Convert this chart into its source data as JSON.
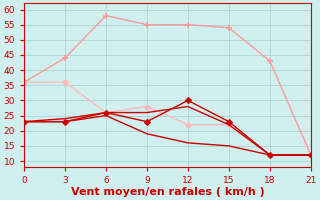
{
  "x": [
    0,
    3,
    6,
    9,
    12,
    15,
    18,
    21
  ],
  "series": [
    {
      "y": [
        36,
        44,
        58,
        55,
        55,
        54,
        43,
        12
      ],
      "color": "#ff9999",
      "linewidth": 1.0,
      "marker": "+",
      "markersize": 5,
      "markeredgewidth": 1.2,
      "zorder": 2
    },
    {
      "y": [
        36,
        36,
        26,
        28,
        22,
        22,
        12,
        12
      ],
      "color": "#ffbbbb",
      "linewidth": 1.0,
      "marker": "D",
      "markersize": 3,
      "markeredgewidth": 0.8,
      "zorder": 2
    },
    {
      "y": [
        23,
        23,
        26,
        23,
        30,
        23,
        12,
        12
      ],
      "color": "#cc0000",
      "linewidth": 1.0,
      "marker": "D",
      "markersize": 3,
      "markeredgewidth": 0.8,
      "zorder": 3
    },
    {
      "y": [
        23,
        24,
        26,
        26,
        28,
        22,
        12,
        12
      ],
      "color": "#cc0000",
      "linewidth": 1.0,
      "marker": null,
      "markersize": 0,
      "markeredgewidth": 0.8,
      "zorder": 3
    },
    {
      "y": [
        23,
        23,
        25,
        19,
        16,
        15,
        12,
        12
      ],
      "color": "#cc0000",
      "linewidth": 1.0,
      "marker": null,
      "markersize": 0,
      "markeredgewidth": 0.8,
      "zorder": 3
    }
  ],
  "xlabel": "Vent moyen/en rafales ( km/h )",
  "xlim": [
    0,
    21
  ],
  "ylim": [
    8,
    62
  ],
  "yticks": [
    10,
    15,
    20,
    25,
    30,
    35,
    40,
    45,
    50,
    55,
    60
  ],
  "xticks": [
    0,
    3,
    6,
    9,
    12,
    15,
    18,
    21
  ],
  "background_color": "#cff0ee",
  "grid_color": "#aacfcf",
  "xlabel_color": "#cc0000",
  "xlabel_fontsize": 8,
  "tick_fontsize": 6.5,
  "tick_color": "#cc0000",
  "spine_color": "#cc0000",
  "figwidth": 3.2,
  "figheight": 2.0,
  "dpi": 100
}
